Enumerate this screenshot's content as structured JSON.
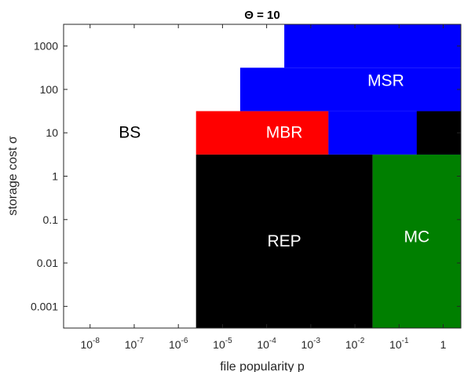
{
  "chart_data": {
    "type": "heatmap",
    "title": "Θ = 10",
    "xlabel": "file popularity p",
    "ylabel": "storage cost σ",
    "xscale": "log",
    "yscale": "log",
    "xlim_log10": [
      -8.6,
      0.4
    ],
    "ylim_log10": [
      -3.5,
      3.5
    ],
    "x_ticks": [
      {
        "exp": -8,
        "base": "10",
        "sup": "-8"
      },
      {
        "exp": -7,
        "base": "10",
        "sup": "-7"
      },
      {
        "exp": -6,
        "base": "10",
        "sup": "-6"
      },
      {
        "exp": -5,
        "base": "10",
        "sup": "-5"
      },
      {
        "exp": -4,
        "base": "10",
        "sup": "-4"
      },
      {
        "exp": -3,
        "base": "10",
        "sup": "-3"
      },
      {
        "exp": -2,
        "base": "10",
        "sup": "-2"
      },
      {
        "exp": -1,
        "base": "10",
        "sup": "-1"
      },
      {
        "exp": 0,
        "base": "1",
        "sup": ""
      }
    ],
    "y_ticks": [
      {
        "exp": 3,
        "label": "1000"
      },
      {
        "exp": 2,
        "label": "100"
      },
      {
        "exp": 1,
        "label": "10"
      },
      {
        "exp": 0,
        "label": "1"
      },
      {
        "exp": -1,
        "label": "0.1"
      },
      {
        "exp": -2,
        "label": "0.01"
      },
      {
        "exp": -3,
        "label": "0.001"
      }
    ],
    "regions": [
      {
        "name": "REP",
        "color": "#000000",
        "x_log10": [
          -5.6,
          -1.6
        ],
        "y_log10": [
          -3.5,
          0.5
        ]
      },
      {
        "name": "MC",
        "color": "#007f00",
        "x_log10": [
          -1.6,
          0.4
        ],
        "y_log10": [
          -3.5,
          0.5
        ]
      },
      {
        "name": "MBR",
        "color": "#ff0000",
        "x_log10": [
          -5.6,
          -2.6
        ],
        "y_log10": [
          0.5,
          1.5
        ]
      },
      {
        "name": "MSR",
        "color": "#0000ff",
        "x_log10": [
          -2.6,
          0.4
        ],
        "y_log10": [
          0.5,
          1.5
        ]
      },
      {
        "name": "",
        "color": "#000000",
        "x_log10": [
          -0.6,
          0.4
        ],
        "y_log10": [
          0.5,
          1.5
        ]
      },
      {
        "name": "MSR",
        "color": "#0000ff",
        "x_log10": [
          -4.6,
          0.4
        ],
        "y_log10": [
          1.5,
          2.5
        ]
      },
      {
        "name": "MSR",
        "color": "#0000ff",
        "x_log10": [
          -3.6,
          0.4
        ],
        "y_log10": [
          2.5,
          3.5
        ]
      }
    ],
    "region_labels": [
      {
        "text": "BS",
        "x_log10": -7.1,
        "y_log10": 1.0,
        "color": "#000000"
      },
      {
        "text": "MBR",
        "x_log10": -3.6,
        "y_log10": 1.0,
        "color": "#ffffff"
      },
      {
        "text": "MSR",
        "x_log10": -1.3,
        "y_log10": 2.2,
        "color": "#ffffff"
      },
      {
        "text": "REP",
        "x_log10": -3.6,
        "y_log10": -1.5,
        "color": "#ffffff"
      },
      {
        "text": "MC",
        "x_log10": -0.6,
        "y_log10": -1.4,
        "color": "#ffffff"
      }
    ]
  }
}
